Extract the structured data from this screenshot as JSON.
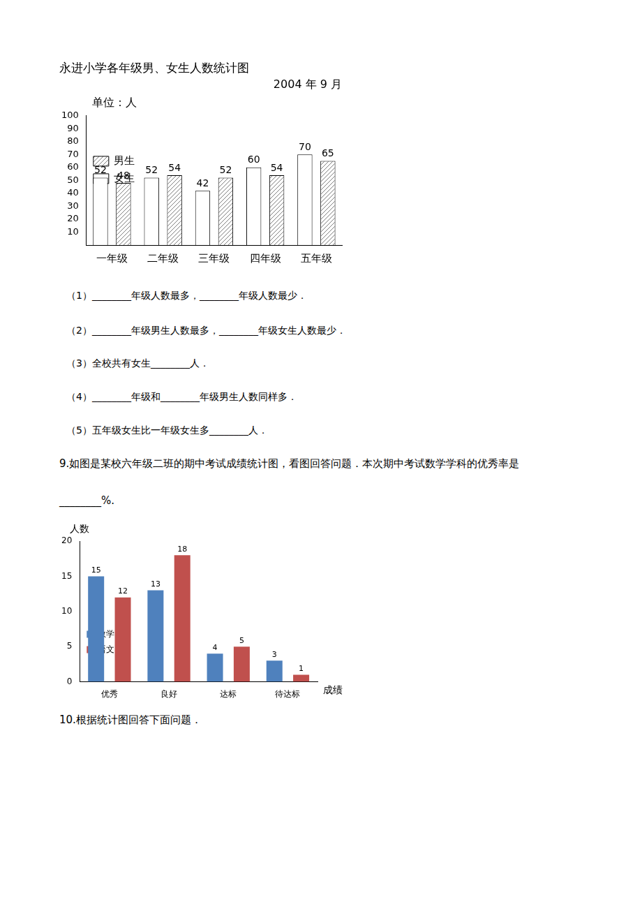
{
  "chart_data": [
    {
      "type": "bar",
      "title": "永进小学各年级男、女生人数统计图",
      "subtitle": "2004 年 9 月",
      "y_label": "单位：人",
      "categories": [
        "一年级",
        "二年级",
        "三年级",
        "四年级",
        "五年级"
      ],
      "series": [
        {
          "name": "女生",
          "color": "#ffffff",
          "values": [
            52,
            52,
            42,
            60,
            70
          ]
        },
        {
          "name": "男生",
          "color": "#7f7f7f",
          "values": [
            48,
            54,
            52,
            54,
            65
          ]
        }
      ],
      "ylim": [
        0,
        100
      ],
      "yticks": [
        10,
        20,
        30,
        40,
        50,
        60,
        70,
        80,
        90,
        100
      ],
      "grid": false,
      "legend": "upper right",
      "data_labels": true
    },
    {
      "type": "bar",
      "y_label": "人数",
      "x_label": "成绩",
      "categories": [
        "优秀",
        "良好",
        "达标",
        "待达标"
      ],
      "series": [
        {
          "name": "数学",
          "color": "#4f81bd",
          "values": [
            15,
            13,
            4,
            3
          ]
        },
        {
          "name": "语文",
          "color": "#c0504d",
          "values": [
            12,
            18,
            5,
            1
          ]
        }
      ],
      "ylim": [
        0,
        20
      ],
      "yticks": [
        0,
        5,
        10,
        15,
        20
      ],
      "grid": false,
      "legend": "upper right",
      "data_labels": true
    }
  ],
  "document": {
    "questions": [
      "（1）________年级人数最多，________年级人数最少．",
      "（2）________年级男生人数最多，________年级女生人数最少．",
      "（3）全校共有女生________人．",
      "（4）________年级和________年级男生人数同样多．",
      "（5）五年级女生比一年级女生多________人．"
    ],
    "problem9": [
      "9.如图是某校六年级二班的期中考试成绩统计图，看图回答问题．本次期中考试数学学科的优秀率是",
      "________%."
    ],
    "problem10": "10.根据统计图回答下面问题．"
  }
}
